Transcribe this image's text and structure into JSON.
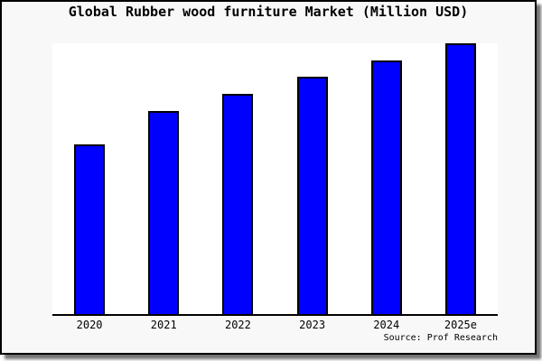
{
  "chart_data": {
    "type": "bar",
    "title": "Global Rubber wood furniture Market (Million USD)",
    "categories": [
      "2020",
      "2021",
      "2022",
      "2023",
      "2024",
      "2025e"
    ],
    "values": [
      188,
      225,
      244,
      263,
      281,
      300
    ],
    "value_scale_note": "no y-axis, gridlines or value labels are shown; values are relative bar heights estimated from pixels",
    "xlabel": "",
    "ylabel": "",
    "ylim": [
      0,
      302
    ],
    "grid": false,
    "legend": null,
    "colors": {
      "bar_fill": "#0000ff",
      "bar_border": "#000000",
      "axis": "#000000",
      "plot_bg": "#ffffff",
      "card_bg": "#f8f8f8"
    }
  },
  "source": {
    "label": "Source: Prof Research"
  }
}
